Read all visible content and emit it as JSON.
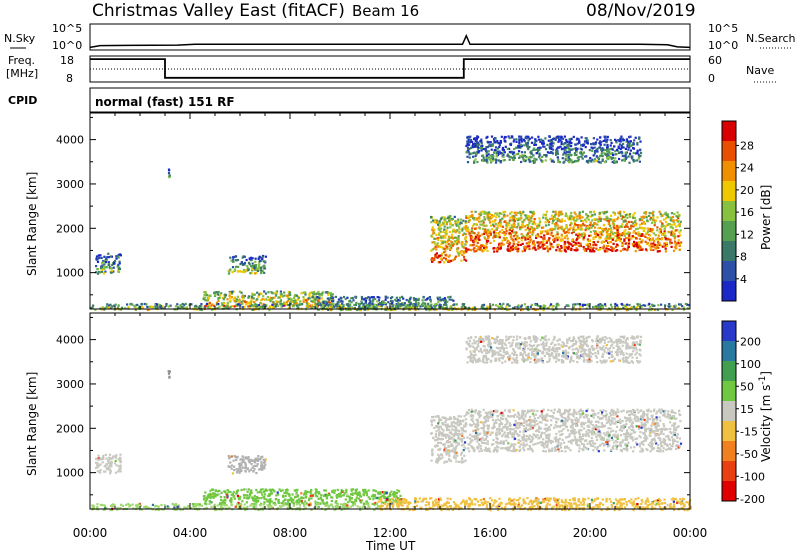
{
  "header": {
    "title": "Christmas Valley East (fitACF)",
    "beam": "Beam 16",
    "date": "08/Nov/2019"
  },
  "panels": {
    "nsky_label": "N.Sky",
    "nsearch_label": "N.Search",
    "freq_label_line1": "Freq.",
    "freq_label_line2": "[MHz]",
    "nave_label": "Nave",
    "cpid_label": "CPID",
    "cpid_value": "normal (fast) 151 RF"
  },
  "chart_data": [
    {
      "type": "line",
      "name": "noise",
      "ylabel_left": "N.Sky",
      "ylabel_right": "N.Search",
      "left_ticks": [
        "10^5",
        "10^0"
      ],
      "right_ticks": [
        "10^5",
        "10^0"
      ],
      "x": [
        0,
        0.4,
        3.5,
        4.2,
        8,
        12,
        14.9,
        15.05,
        15.2,
        18,
        22,
        23.1,
        23.5,
        24
      ],
      "y": [
        0.1,
        0.17,
        0.19,
        0.22,
        0.22,
        0.22,
        0.22,
        0.55,
        0.22,
        0.22,
        0.22,
        0.2,
        0.12,
        0.1
      ]
    },
    {
      "type": "line",
      "name": "frequency",
      "ylabel_left": "Freq. [MHz]",
      "ylabel_right": "Nave",
      "left_ticks": [
        "18",
        "8"
      ],
      "right_ticks": [
        "60",
        "0"
      ],
      "freq_x": [
        0,
        3.0,
        3.0,
        14.95,
        14.95,
        24
      ],
      "freq_y": [
        16.8,
        16.8,
        9.6,
        9.6,
        16.8,
        16.8
      ],
      "nave": 30
    },
    {
      "type": "heatmap",
      "name": "power",
      "xlabel": "Time UT",
      "ylabel": "Slant Range [km]",
      "xlim": [
        0,
        24
      ],
      "ylim": [
        180,
        4600
      ],
      "xticks": [
        "00:00",
        "04:00",
        "08:00",
        "12:00",
        "16:00",
        "20:00",
        "00:00"
      ],
      "yticks": [
        1000,
        2000,
        3000,
        4000
      ],
      "colorbar_label": "Power [dB]",
      "colorbar_ticks": [
        4,
        8,
        12,
        16,
        20,
        24,
        28
      ],
      "colorbar_colors": [
        "#1a28c8",
        "#2c50a8",
        "#3a7868",
        "#54a050",
        "#88c040",
        "#f0c800",
        "#f09000",
        "#e85000",
        "#d80000"
      ],
      "regions": [
        {
          "t0": 0.2,
          "t1": 1.2,
          "r0": 1000,
          "r1": 1450,
          "level": 0.25
        },
        {
          "t0": 3.1,
          "t1": 3.15,
          "r0": 3150,
          "r1": 3350,
          "level": 0.15
        },
        {
          "t0": 5.5,
          "t1": 7.0,
          "r0": 1000,
          "r1": 1400,
          "level": 0.35
        },
        {
          "t0": 4.5,
          "t1": 9.7,
          "r0": 250,
          "r1": 600,
          "level": 0.55
        },
        {
          "t0": 0,
          "t1": 24,
          "r0": 180,
          "r1": 320,
          "level": 0.4
        },
        {
          "t0": 9.0,
          "t1": 14.5,
          "r0": 180,
          "r1": 480,
          "level": 0.3
        },
        {
          "t0": 13.6,
          "t1": 15.0,
          "r0": 1250,
          "r1": 2300,
          "level": 0.6
        },
        {
          "t0": 15.0,
          "t1": 23.6,
          "r0": 1500,
          "r1": 2400,
          "level": 0.7
        },
        {
          "t0": 15.0,
          "t1": 22.0,
          "r0": 3500,
          "r1": 4100,
          "level": 0.2
        }
      ]
    },
    {
      "type": "heatmap",
      "name": "velocity",
      "xlabel": "Time UT",
      "ylabel": "Slant Range [km]",
      "xlim": [
        0,
        24
      ],
      "ylim": [
        180,
        4600
      ],
      "xticks": [
        "00:00",
        "04:00",
        "08:00",
        "12:00",
        "16:00",
        "20:00",
        "00:00"
      ],
      "yticks": [
        1000,
        2000,
        3000,
        4000
      ],
      "colorbar_label": "Velocity [m s",
      "colorbar_label_exp": "-1",
      "colorbar_label_end": "]",
      "colorbar_ticks": [
        "200",
        "100",
        "50",
        "15",
        "-15",
        "-50",
        "-100",
        "-200"
      ],
      "colorbar_colors": [
        "#2838c8",
        "#2878a0",
        "#40a050",
        "#70c840",
        "#c8c8c0",
        "#f0c040",
        "#f08020",
        "#e84010",
        "#e00000"
      ],
      "regions": [
        {
          "t0": 0.2,
          "t1": 1.2,
          "r0": 1000,
          "r1": 1450,
          "color": "#c8c8c0"
        },
        {
          "t0": 3.1,
          "t1": 3.15,
          "r0": 3150,
          "r1": 3350,
          "color": "#909090"
        },
        {
          "t0": 5.5,
          "t1": 7.0,
          "r0": 1000,
          "r1": 1400,
          "color": "#b0b0b0"
        },
        {
          "t0": 4.5,
          "t1": 12.5,
          "r0": 300,
          "r1": 650,
          "color": "#70c840"
        },
        {
          "t0": 11.5,
          "t1": 24,
          "r0": 180,
          "r1": 450,
          "color": "#f0c040"
        },
        {
          "t0": 0,
          "t1": 11.5,
          "r0": 180,
          "r1": 320,
          "color": "#a0d870"
        },
        {
          "t0": 13.6,
          "t1": 15.0,
          "r0": 1250,
          "r1": 2300,
          "color": "#c8c8c0"
        },
        {
          "t0": 15.0,
          "t1": 23.6,
          "r0": 1500,
          "r1": 2450,
          "color": "#c8c8c0"
        },
        {
          "t0": 15.0,
          "t1": 22.0,
          "r0": 3500,
          "r1": 4100,
          "color": "#c8c8c0"
        }
      ]
    }
  ]
}
